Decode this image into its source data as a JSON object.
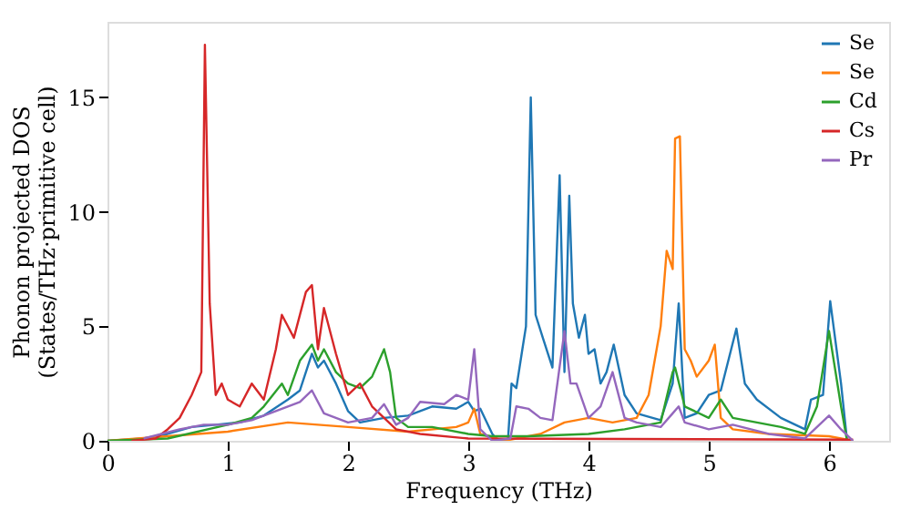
{
  "chart_data": {
    "type": "line",
    "xlabel": "Frequency (THz)",
    "ylabel": "Phonon projected DOS\n(States/THz·primitive cell)",
    "xlim": [
      0,
      6.5
    ],
    "ylim": [
      0,
      18.3
    ],
    "xticks": [
      0,
      1,
      2,
      3,
      4,
      5,
      6
    ],
    "yticks": [
      0,
      5,
      10,
      15
    ],
    "legend": "top right",
    "grid": false,
    "line_style": "solid",
    "marker": "none",
    "series": [
      {
        "name": "Se",
        "color": "#1f77b4",
        "x": [
          0,
          0.3,
          0.5,
          0.7,
          0.9,
          1.1,
          1.3,
          1.5,
          1.6,
          1.7,
          1.75,
          1.8,
          1.9,
          2.0,
          2.1,
          2.3,
          2.5,
          2.7,
          2.9,
          3.0,
          3.05,
          3.1,
          3.2,
          3.25,
          3.33,
          3.36,
          3.4,
          3.45,
          3.48,
          3.52,
          3.56,
          3.62,
          3.7,
          3.76,
          3.8,
          3.84,
          3.87,
          3.92,
          3.97,
          4.0,
          4.05,
          4.1,
          4.15,
          4.21,
          4.3,
          4.4,
          4.6,
          4.7,
          4.75,
          4.8,
          4.9,
          5.0,
          5.1,
          5.23,
          5.3,
          5.4,
          5.6,
          5.8,
          5.85,
          5.95,
          6.01,
          6.1,
          6.15
        ],
        "values": [
          0,
          0.1,
          0.3,
          0.6,
          0.7,
          0.8,
          1.1,
          1.8,
          2.2,
          3.8,
          3.2,
          3.5,
          2.5,
          1.3,
          0.8,
          1.0,
          1.1,
          1.5,
          1.4,
          1.7,
          1.3,
          1.4,
          0.3,
          0,
          0,
          2.5,
          2.3,
          4.0,
          5.0,
          15.0,
          5.5,
          4.5,
          3.2,
          11.6,
          3.0,
          10.7,
          6.0,
          4.5,
          5.5,
          3.8,
          4.0,
          2.5,
          3.0,
          4.2,
          2.0,
          1.2,
          0.9,
          2.5,
          6.0,
          1.0,
          1.2,
          2.0,
          2.2,
          4.9,
          2.5,
          1.8,
          1.0,
          0.5,
          1.8,
          2.0,
          6.1,
          2.5,
          0
        ]
      },
      {
        "name": "Se",
        "color": "#ff7f0e",
        "x": [
          0,
          0.5,
          1.0,
          1.5,
          2.0,
          2.5,
          2.9,
          3.0,
          3.05,
          3.1,
          3.3,
          3.6,
          3.8,
          4.0,
          4.2,
          4.4,
          4.5,
          4.6,
          4.65,
          4.7,
          4.72,
          4.76,
          4.8,
          4.85,
          4.9,
          5.0,
          5.05,
          5.1,
          5.2,
          5.5,
          6.0,
          6.2
        ],
        "values": [
          0,
          0.2,
          0.4,
          0.8,
          0.6,
          0.4,
          0.6,
          0.8,
          1.4,
          0.3,
          0,
          0.3,
          0.8,
          1.0,
          0.8,
          1.0,
          2.0,
          5.0,
          8.3,
          7.5,
          13.2,
          13.3,
          4.0,
          3.5,
          2.8,
          3.5,
          4.2,
          1.0,
          0.5,
          0.3,
          0.2,
          0
        ]
      },
      {
        "name": "Cd",
        "color": "#2ca02c",
        "x": [
          0,
          0.5,
          1.0,
          1.2,
          1.3,
          1.45,
          1.5,
          1.6,
          1.7,
          1.75,
          1.8,
          1.9,
          2.0,
          2.1,
          2.2,
          2.3,
          2.35,
          2.4,
          2.5,
          2.7,
          3.0,
          3.2,
          3.5,
          4.0,
          4.3,
          4.6,
          4.7,
          4.72,
          4.8,
          5.0,
          5.1,
          5.2,
          5.6,
          5.8,
          5.9,
          6.0,
          6.1,
          6.15
        ],
        "values": [
          0,
          0.1,
          0.7,
          1.0,
          1.5,
          2.5,
          2.0,
          3.5,
          4.2,
          3.5,
          4.0,
          3.0,
          2.5,
          2.3,
          2.8,
          4.0,
          3.0,
          1.0,
          0.6,
          0.6,
          0.3,
          0.2,
          0.2,
          0.3,
          0.5,
          0.8,
          3.0,
          3.2,
          1.5,
          1.0,
          1.8,
          1.0,
          0.6,
          0.3,
          1.5,
          4.8,
          1.5,
          0
        ]
      },
      {
        "name": "Cs",
        "color": "#d62728",
        "x": [
          0.2,
          0.4,
          0.5,
          0.6,
          0.7,
          0.78,
          0.81,
          0.85,
          0.9,
          0.95,
          1.0,
          1.1,
          1.2,
          1.3,
          1.4,
          1.45,
          1.5,
          1.55,
          1.65,
          1.7,
          1.75,
          1.8,
          1.9,
          2.0,
          2.1,
          2.2,
          2.4,
          2.6,
          3.0,
          6.2
        ],
        "values": [
          0,
          0.1,
          0.5,
          1.0,
          2.0,
          3.0,
          17.3,
          6.0,
          2.0,
          2.5,
          1.8,
          1.5,
          2.5,
          1.8,
          4.0,
          5.5,
          5.0,
          4.5,
          6.5,
          6.8,
          4.0,
          5.8,
          3.8,
          2.0,
          2.5,
          1.5,
          0.5,
          0.3,
          0.1,
          0.05
        ]
      },
      {
        "name": "Pr",
        "color": "#9467bd",
        "x": [
          0.3,
          0.6,
          0.8,
          1.0,
          1.2,
          1.5,
          1.6,
          1.7,
          1.8,
          1.9,
          2.0,
          2.2,
          2.3,
          2.4,
          2.5,
          2.6,
          2.8,
          2.9,
          3.0,
          3.05,
          3.1,
          3.2,
          3.35,
          3.4,
          3.5,
          3.6,
          3.7,
          3.8,
          3.85,
          3.9,
          4.0,
          4.1,
          4.2,
          4.3,
          4.4,
          4.6,
          4.7,
          4.75,
          4.8,
          5.0,
          5.2,
          5.5,
          5.8,
          6.0,
          6.1,
          6.2
        ],
        "values": [
          0.1,
          0.5,
          0.7,
          0.7,
          0.9,
          1.5,
          1.7,
          2.2,
          1.2,
          1.0,
          0.8,
          1.0,
          1.6,
          0.7,
          1.0,
          1.7,
          1.6,
          2.0,
          1.8,
          4.0,
          0.5,
          0,
          0.1,
          1.5,
          1.4,
          1.0,
          0.9,
          4.8,
          2.5,
          2.5,
          1.0,
          1.5,
          3.0,
          1.0,
          0.8,
          0.6,
          1.2,
          1.5,
          0.8,
          0.5,
          0.7,
          0.3,
          0.1,
          1.1,
          0.5,
          0
        ]
      }
    ]
  }
}
